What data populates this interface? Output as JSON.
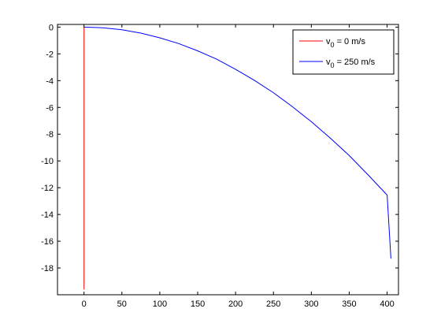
{
  "chart_data": {
    "type": "line",
    "title": "",
    "xlabel": "",
    "ylabel": "",
    "xlim": [
      -35,
      415
    ],
    "ylim": [
      -20,
      0.2
    ],
    "xticks": [
      0,
      50,
      100,
      150,
      200,
      250,
      300,
      350,
      400
    ],
    "yticks": [
      0,
      -2,
      -4,
      -6,
      -8,
      -10,
      -12,
      -14,
      -16,
      -18
    ],
    "xtick_labels": [
      "0",
      "50",
      "100",
      "150",
      "200",
      "250",
      "300",
      "350",
      "400"
    ],
    "ytick_labels": [
      "0",
      "-2",
      "-4",
      "-6",
      "-8",
      "-10",
      "-12",
      "-14",
      "-16",
      "-18"
    ],
    "grid": false,
    "legend_position": "top-right",
    "series": [
      {
        "name": "v0 = 0 m/s",
        "legend_text": {
          "base": "v",
          "sub": "0",
          "rest": " = 0 m/s"
        },
        "color": "#ff0000",
        "x": [
          0,
          0
        ],
        "y": [
          0,
          -19.6
        ]
      },
      {
        "name": "v0 = 250 m/s",
        "legend_text": {
          "base": "v",
          "sub": "0",
          "rest": " = 250 m/s"
        },
        "color": "#0000ff",
        "x": [
          0,
          25,
          50,
          75,
          100,
          125,
          150,
          175,
          200,
          225,
          250,
          275,
          300,
          325,
          350,
          375,
          400,
          405
        ],
        "y": [
          0,
          -0.05,
          -0.2,
          -0.45,
          -0.8,
          -1.23,
          -1.77,
          -2.4,
          -3.15,
          -3.99,
          -4.9,
          -5.95,
          -7.07,
          -8.3,
          -9.6,
          -11.05,
          -12.55,
          -17.3
        ]
      }
    ]
  }
}
